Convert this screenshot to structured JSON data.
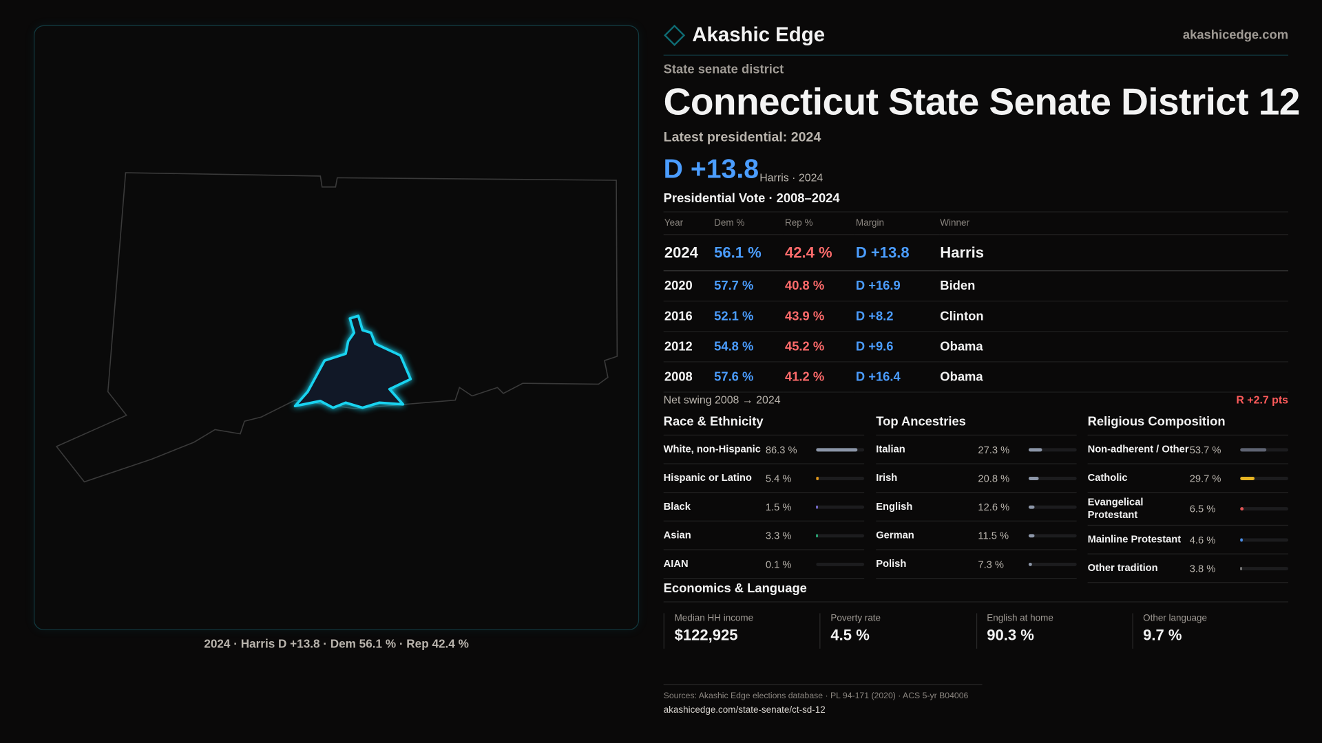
{
  "header": {
    "brand": "Akashic Edge",
    "site": "akashicedge.com"
  },
  "kicker": "State senate district",
  "title": "Connecticut State Senate District 12",
  "latest_label": "Latest presidential: 2024",
  "latest_margin": "D +13.8",
  "latest_sub": "Harris · 2024",
  "table_title": "Presidential Vote · 2008–2024",
  "table": {
    "headers": [
      "Year",
      "Dem %",
      "Rep %",
      "Margin",
      "Winner"
    ],
    "rows": [
      {
        "year": "2024",
        "dem": "56.1 %",
        "rep": "42.4 %",
        "margin": "D +13.8",
        "winner": "Harris"
      },
      {
        "year": "2020",
        "dem": "57.7 %",
        "rep": "40.8 %",
        "margin": "D +16.9",
        "winner": "Biden"
      },
      {
        "year": "2016",
        "dem": "52.1 %",
        "rep": "43.9 %",
        "margin": "D +8.2",
        "winner": "Clinton"
      },
      {
        "year": "2012",
        "dem": "54.8 %",
        "rep": "45.2 %",
        "margin": "D +9.6",
        "winner": "Obama"
      },
      {
        "year": "2008",
        "dem": "57.6 %",
        "rep": "41.2 %",
        "margin": "D +16.4",
        "winner": "Obama"
      }
    ]
  },
  "swing": {
    "label": "Net swing 2008 → 2024",
    "value": "R +2.7 pts"
  },
  "race": {
    "title": "Race & Ethnicity",
    "items": [
      {
        "label": "White, non-Hispanic",
        "value": "86.3 %",
        "pct": 86.3,
        "color": "#8c96a8"
      },
      {
        "label": "Hispanic or Latino",
        "value": "5.4 %",
        "pct": 5.4,
        "color": "#e0961a"
      },
      {
        "label": "Black",
        "value": "1.5 %",
        "pct": 1.5,
        "color": "#8a7cf0"
      },
      {
        "label": "Asian",
        "value": "3.3 %",
        "pct": 3.3,
        "color": "#2fc48a"
      },
      {
        "label": "AIAN",
        "value": "0.1 %",
        "pct": 0.1,
        "color": "#444"
      }
    ]
  },
  "ancestry": {
    "title": "Top Ancestries",
    "items": [
      {
        "label": "Italian",
        "value": "27.3 %",
        "pct": 27.3,
        "color": "#8c96a8"
      },
      {
        "label": "Irish",
        "value": "20.8 %",
        "pct": 20.8,
        "color": "#8c96a8"
      },
      {
        "label": "English",
        "value": "12.6 %",
        "pct": 12.6,
        "color": "#8c96a8"
      },
      {
        "label": "German",
        "value": "11.5 %",
        "pct": 11.5,
        "color": "#8c96a8"
      },
      {
        "label": "Polish",
        "value": "7.3 %",
        "pct": 7.3,
        "color": "#8c96a8"
      }
    ]
  },
  "religion": {
    "title": "Religious Composition",
    "items": [
      {
        "label": "Non-adherent / Other",
        "value": "53.7 %",
        "pct": 53.7,
        "color": "#5f6473"
      },
      {
        "label": "Catholic",
        "value": "29.7 %",
        "pct": 29.7,
        "color": "#e6b422"
      },
      {
        "label": "Evangelical Protestant",
        "value": "6.5 %",
        "pct": 6.5,
        "color": "#e05555"
      },
      {
        "label": "Mainline Protestant",
        "value": "4.6 %",
        "pct": 4.6,
        "color": "#4b8ee8"
      },
      {
        "label": "Other tradition",
        "value": "3.8 %",
        "pct": 3.8,
        "color": "#8c8c8c"
      }
    ]
  },
  "economics": {
    "title": "Economics & Language",
    "cards": [
      {
        "label": "Median HH income",
        "value": "$122,925"
      },
      {
        "label": "Poverty rate",
        "value": "4.5 %"
      },
      {
        "label": "English at home",
        "value": "90.3 %"
      },
      {
        "label": "Other language",
        "value": "9.7 %"
      }
    ]
  },
  "map_caption": "2024 · Harris D +13.8 · Dem 56.1 % · Rep 42.4 %",
  "footer": {
    "sources": "Sources: Akashic Edge elections database · PL 94-171 (2020) · ACS 5-yr B04006",
    "url": "akashicedge.com/state-senate/ct-sd-12"
  },
  "colors": {
    "dem": "#4b9dff",
    "rep": "#ff6b6b",
    "district": "#19d3f0"
  }
}
